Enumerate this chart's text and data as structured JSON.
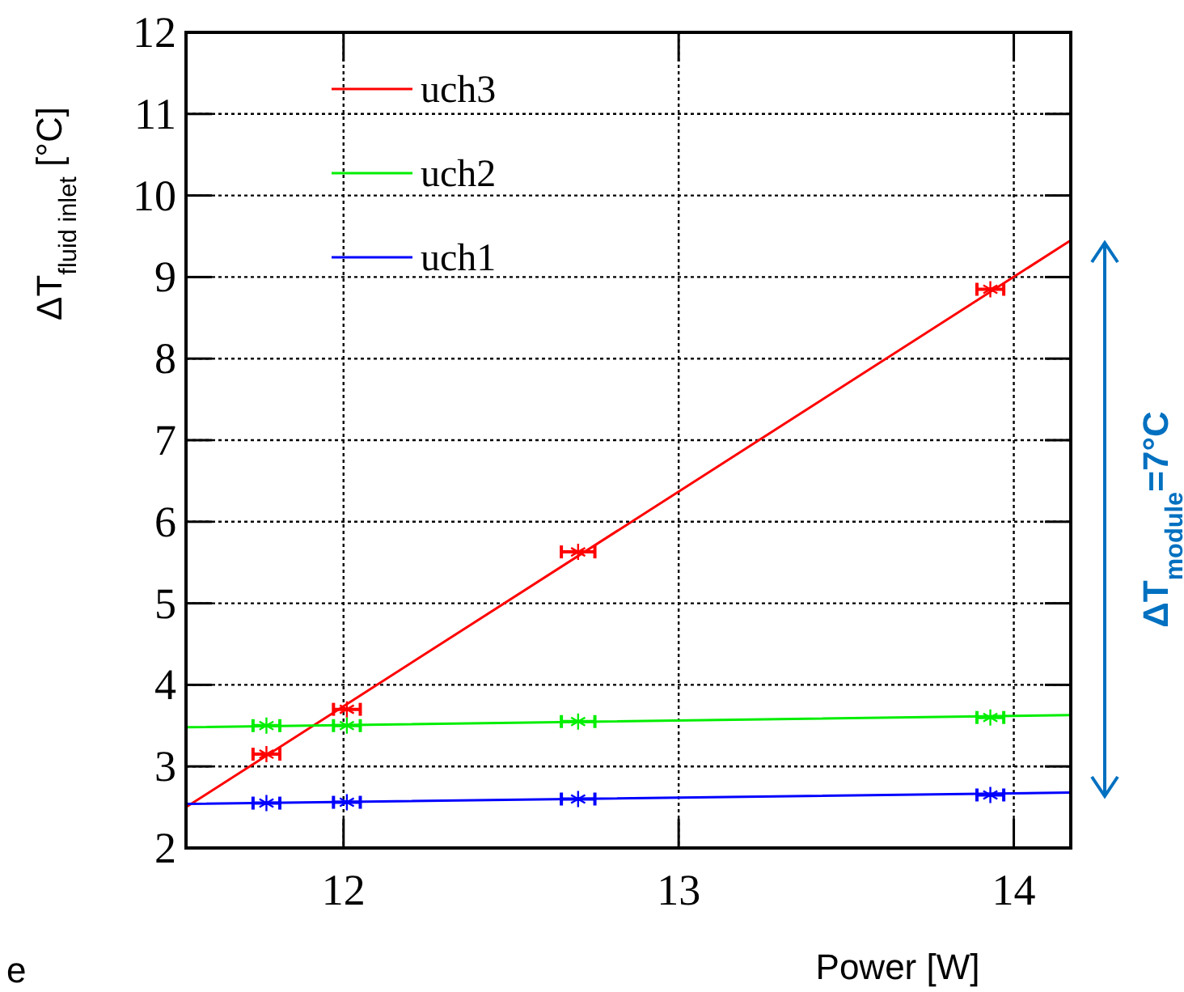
{
  "chart_data": {
    "type": "scatter",
    "xlabel": "Power [W]",
    "ylabel": "ΔT$_{fluid inlet}$ [°C]",
    "xlim": [
      11.53,
      14.17
    ],
    "xticks": [
      12,
      13,
      14
    ],
    "ylim": [
      2,
      12
    ],
    "yticks": [
      2,
      3,
      4,
      5,
      6,
      7,
      8,
      9,
      10,
      11,
      12
    ],
    "grid": true,
    "legend": "top left",
    "series": [
      {
        "type": "line",
        "name": "uch3",
        "color": "#ff0000",
        "x": [
          11.53,
          14.17
        ],
        "values": [
          2.5,
          9.45
        ]
      },
      {
        "type": "line",
        "name": "uch2",
        "color": "#00ee00",
        "x": [
          11.53,
          14.17
        ],
        "values": [
          3.48,
          3.63
        ]
      },
      {
        "type": "line",
        "name": "uch1",
        "color": "#0000ff",
        "x": [
          11.53,
          14.17
        ],
        "values": [
          2.54,
          2.68
        ]
      },
      {
        "color": "#ff0000",
        "marker": "cross",
        "x": [
          11.77,
          12.01,
          12.7,
          13.93
        ],
        "values": [
          3.15,
          3.7,
          5.63,
          8.85
        ],
        "xerrors": [
          0.04,
          0.04,
          0.05,
          0.04
        ]
      },
      {
        "color": "#00ee00",
        "marker": "cross",
        "x": [
          11.77,
          12.01,
          12.7,
          13.93
        ],
        "values": [
          3.5,
          3.5,
          3.55,
          3.6
        ],
        "xerrors": [
          0.04,
          0.04,
          0.05,
          0.04
        ]
      },
      {
        "color": "#0000ff",
        "marker": "cross",
        "x": [
          11.77,
          12.01,
          12.7,
          13.93
        ],
        "values": [
          2.55,
          2.56,
          2.6,
          2.65
        ],
        "xerrors": [
          0.04,
          0.04,
          0.05,
          0.04
        ]
      }
    ],
    "annotations": [
      "ΔT$_{module}$=7°C",
      "e"
    ]
  }
}
